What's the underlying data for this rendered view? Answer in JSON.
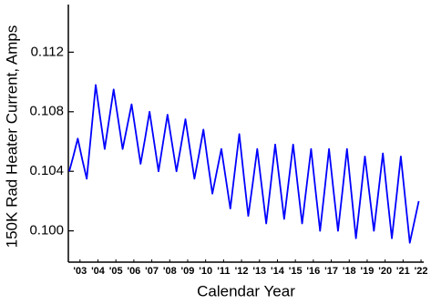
{
  "chart_data": {
    "type": "line",
    "x_label": "Calendar Year",
    "y_label": "150K Rad Heater Current, Amps",
    "xlim": [
      2002.85,
      2022.65
    ],
    "ylim": [
      0.0979,
      0.1152
    ],
    "yticks": [
      {
        "value": 0.1,
        "label": "0.100"
      },
      0.104,
      0.108,
      0.112
    ],
    "xticks": [
      {
        "value": 2003.5,
        "label": "'03"
      },
      {
        "value": 2004.5,
        "label": "'04"
      },
      {
        "value": 2005.5,
        "label": "'05"
      },
      {
        "value": 2006.5,
        "label": "'06"
      },
      {
        "value": 2007.5,
        "label": "'07"
      },
      {
        "value": 2008.5,
        "label": "'08"
      },
      {
        "value": 2009.5,
        "label": "'09"
      },
      {
        "value": 2010.5,
        "label": "'10"
      },
      {
        "value": 2011.5,
        "label": "'11"
      },
      {
        "value": 2012.5,
        "label": "'12"
      },
      {
        "value": 2013.5,
        "label": "'13"
      },
      {
        "value": 2014.5,
        "label": "'14"
      },
      {
        "value": 2015.5,
        "label": "'15"
      },
      {
        "value": 2016.5,
        "label": "'16"
      },
      {
        "value": 2017.5,
        "label": "'17"
      },
      {
        "value": 2018.5,
        "label": "'18"
      },
      {
        "value": 2019.5,
        "label": "'19"
      },
      {
        "value": 2020.5,
        "label": "'20"
      },
      {
        "value": 2021.5,
        "label": "'21"
      },
      {
        "value": 2022.5,
        "label": "'22"
      }
    ],
    "color": "#0000ff",
    "x": [
      2002.9,
      2003.125,
      2003.375,
      2003.625,
      2003.875,
      2004.125,
      2004.375,
      2004.625,
      2004.875,
      2005.125,
      2005.375,
      2005.625,
      2005.875,
      2006.125,
      2006.375,
      2006.625,
      2006.875,
      2007.125,
      2007.375,
      2007.625,
      2007.875,
      2008.125,
      2008.375,
      2008.625,
      2008.875,
      2009.125,
      2009.375,
      2009.625,
      2009.875,
      2010.125,
      2010.375,
      2010.625,
      2010.875,
      2011.125,
      2011.375,
      2011.625,
      2011.875,
      2012.125,
      2012.375,
      2012.625,
      2012.875,
      2013.125,
      2013.375,
      2013.625,
      2013.875,
      2014.125,
      2014.375,
      2014.625,
      2014.875,
      2015.125,
      2015.375,
      2015.625,
      2015.875,
      2016.125,
      2016.375,
      2016.625,
      2016.875,
      2017.125,
      2017.375,
      2017.625,
      2017.875,
      2018.125,
      2018.375,
      2018.625,
      2018.875,
      2019.125,
      2019.375,
      2019.625,
      2019.875,
      2020.125,
      2020.375,
      2020.625,
      2020.875,
      2021.125,
      2021.375,
      2021.625,
      2021.875,
      2022.375
    ],
    "values": [
      0.104,
      0.105,
      0.1062,
      0.1048,
      0.1035,
      0.1066,
      0.1098,
      0.1076,
      0.1055,
      0.1075,
      0.1095,
      0.1075,
      0.1055,
      0.107,
      0.1085,
      0.1065,
      0.1045,
      0.1062,
      0.108,
      0.106,
      0.104,
      0.1059,
      0.1078,
      0.1059,
      0.104,
      0.1057,
      0.1075,
      0.1055,
      0.1035,
      0.1051,
      0.1068,
      0.1046,
      0.1025,
      0.104,
      0.1055,
      0.1035,
      0.1015,
      0.104,
      0.1065,
      0.1037,
      0.101,
      0.1032,
      0.1055,
      0.103,
      0.1005,
      0.1031,
      0.1058,
      0.1033,
      0.1008,
      0.1033,
      0.1058,
      0.1031,
      0.1005,
      0.103,
      0.1055,
      0.1027,
      0.1,
      0.1027,
      0.1055,
      0.1027,
      0.1,
      0.1027,
      0.1055,
      0.1025,
      0.0995,
      0.1022,
      0.105,
      0.1025,
      0.1,
      0.1026,
      0.1052,
      0.1023,
      0.0995,
      0.1022,
      0.105,
      0.1021,
      0.0992,
      0.102
    ]
  }
}
